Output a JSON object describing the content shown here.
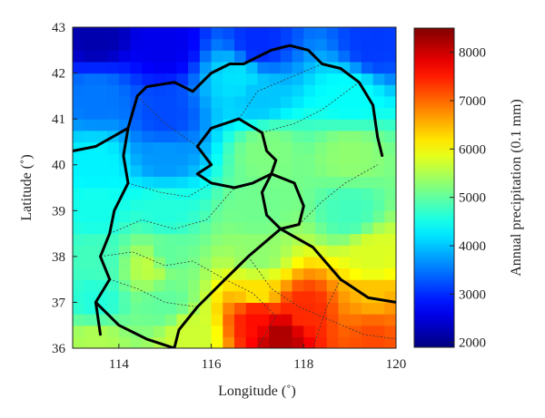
{
  "map": {
    "x_axis": {
      "label": "Longitude (˚)",
      "range": [
        113,
        120
      ],
      "ticks": [
        {
          "value": 114,
          "label": "114"
        },
        {
          "value": 116,
          "label": "116"
        },
        {
          "value": 118,
          "label": "118"
        },
        {
          "value": 120,
          "label": "120"
        }
      ]
    },
    "y_axis": {
      "label": "Latitude (˚)",
      "range": [
        36,
        43
      ],
      "ticks": [
        {
          "value": 36,
          "label": "36"
        },
        {
          "value": 37,
          "label": "37"
        },
        {
          "value": 38,
          "label": "38"
        },
        {
          "value": 39,
          "label": "39"
        },
        {
          "value": 40,
          "label": "40"
        },
        {
          "value": 41,
          "label": "41"
        },
        {
          "value": 42,
          "label": "42"
        },
        {
          "value": 43,
          "label": "43"
        }
      ]
    },
    "colorbar": {
      "label": "Annual precipitation (0.1 mm)",
      "range": [
        1900,
        8500
      ],
      "ticks": [
        {
          "value": 2000,
          "label": "2000"
        },
        {
          "value": 3000,
          "label": "3000"
        },
        {
          "value": 4000,
          "label": "4000"
        },
        {
          "value": 5000,
          "label": "5000"
        },
        {
          "value": 6000,
          "label": "6000"
        },
        {
          "value": 7000,
          "label": "7000"
        },
        {
          "value": 8000,
          "label": "8000"
        }
      ],
      "colormap": "jet"
    },
    "grid_resolution_deg": 0.25,
    "precipitation_anchors": [
      {
        "lon": 113.5,
        "lat": 42.8,
        "value": 2200
      },
      {
        "lon": 115.0,
        "lat": 42.6,
        "value": 2600
      },
      {
        "lon": 117.0,
        "lat": 42.6,
        "value": 3000
      },
      {
        "lon": 119.5,
        "lat": 42.6,
        "value": 3100
      },
      {
        "lon": 113.5,
        "lat": 41.5,
        "value": 3500
      },
      {
        "lon": 115.0,
        "lat": 41.0,
        "value": 3200
      },
      {
        "lon": 117.0,
        "lat": 41.5,
        "value": 4000
      },
      {
        "lon": 119.0,
        "lat": 41.5,
        "value": 4400
      },
      {
        "lon": 113.5,
        "lat": 40.0,
        "value": 4300
      },
      {
        "lon": 115.0,
        "lat": 40.2,
        "value": 3700
      },
      {
        "lon": 117.2,
        "lat": 40.3,
        "value": 5200
      },
      {
        "lon": 119.0,
        "lat": 40.2,
        "value": 5300
      },
      {
        "lon": 113.5,
        "lat": 39.0,
        "value": 4500
      },
      {
        "lon": 115.0,
        "lat": 39.0,
        "value": 4600
      },
      {
        "lon": 117.0,
        "lat": 39.0,
        "value": 5100
      },
      {
        "lon": 119.0,
        "lat": 39.0,
        "value": 4800
      },
      {
        "lon": 113.5,
        "lat": 38.0,
        "value": 4800
      },
      {
        "lon": 115.0,
        "lat": 38.0,
        "value": 5000
      },
      {
        "lon": 117.0,
        "lat": 38.0,
        "value": 5300
      },
      {
        "lon": 119.5,
        "lat": 38.0,
        "value": 5800
      },
      {
        "lon": 113.5,
        "lat": 37.0,
        "value": 4600
      },
      {
        "lon": 115.0,
        "lat": 37.0,
        "value": 5000
      },
      {
        "lon": 117.0,
        "lat": 37.2,
        "value": 6200
      },
      {
        "lon": 119.5,
        "lat": 37.0,
        "value": 6400
      },
      {
        "lon": 113.5,
        "lat": 36.2,
        "value": 5500
      },
      {
        "lon": 115.5,
        "lat": 36.3,
        "value": 5700
      },
      {
        "lon": 117.5,
        "lat": 36.3,
        "value": 8200
      },
      {
        "lon": 119.5,
        "lat": 36.3,
        "value": 7200
      },
      {
        "lon": 117.0,
        "lat": 36.7,
        "value": 7600
      },
      {
        "lon": 118.0,
        "lat": 36.8,
        "value": 7400
      },
      {
        "lon": 119.5,
        "lat": 36.7,
        "value": 7000
      },
      {
        "lon": 114.7,
        "lat": 37.8,
        "value": 5600
      },
      {
        "lon": 116.6,
        "lat": 41.9,
        "value": 4200
      }
    ],
    "boundaries": {
      "provincial": [
        [
          [
            113,
            40.3
          ],
          [
            113.5,
            40.4
          ],
          [
            114.2,
            40.8
          ],
          [
            114.4,
            41.5
          ],
          [
            114.6,
            41.7
          ],
          [
            115.2,
            41.8
          ],
          [
            115.6,
            41.6
          ],
          [
            116.0,
            42.0
          ],
          [
            116.4,
            42.2
          ],
          [
            116.7,
            42.2
          ],
          [
            117.3,
            42.5
          ],
          [
            117.7,
            42.6
          ],
          [
            118.1,
            42.5
          ],
          [
            118.4,
            42.2
          ],
          [
            118.8,
            42.1
          ],
          [
            119.2,
            41.8
          ],
          [
            119.5,
            41.3
          ],
          [
            119.6,
            40.6
          ],
          [
            119.7,
            40.2
          ]
        ],
        [
          [
            114.2,
            40.8
          ],
          [
            114.1,
            40.2
          ],
          [
            114.2,
            39.6
          ],
          [
            113.9,
            39.0
          ],
          [
            113.8,
            38.5
          ],
          [
            113.6,
            38.0
          ],
          [
            113.8,
            37.5
          ],
          [
            113.5,
            37.0
          ],
          [
            113.6,
            36.3
          ]
        ],
        [
          [
            116.0,
            40.0
          ],
          [
            115.7,
            40.4
          ],
          [
            116.0,
            40.8
          ],
          [
            116.6,
            41.0
          ],
          [
            117.1,
            40.7
          ],
          [
            117.2,
            40.3
          ],
          [
            117.4,
            40.1
          ],
          [
            117.3,
            39.8
          ],
          [
            116.9,
            39.6
          ],
          [
            116.5,
            39.5
          ],
          [
            116.0,
            39.6
          ],
          [
            115.7,
            39.8
          ],
          [
            116.0,
            40.0
          ]
        ],
        [
          [
            117.3,
            39.8
          ],
          [
            117.8,
            39.6
          ],
          [
            118.0,
            39.1
          ],
          [
            117.9,
            38.7
          ],
          [
            117.5,
            38.6
          ],
          [
            117.2,
            38.9
          ],
          [
            117.1,
            39.4
          ],
          [
            117.3,
            39.8
          ]
        ],
        [
          [
            113.5,
            37.0
          ],
          [
            114.0,
            36.5
          ],
          [
            114.6,
            36.2
          ],
          [
            115.2,
            36.0
          ]
        ],
        [
          [
            117.5,
            38.6
          ],
          [
            116.8,
            38.0
          ],
          [
            116.6,
            37.8
          ],
          [
            116.3,
            37.5
          ],
          [
            115.7,
            36.9
          ],
          [
            115.3,
            36.4
          ],
          [
            115.2,
            36.0
          ]
        ],
        [
          [
            117.5,
            38.6
          ],
          [
            118.2,
            38.2
          ],
          [
            118.8,
            37.5
          ],
          [
            119.4,
            37.1
          ],
          [
            120,
            37.0
          ]
        ]
      ],
      "prefectural": [
        [
          [
            114.2,
            39.6
          ],
          [
            114.9,
            39.4
          ],
          [
            115.5,
            39.3
          ],
          [
            116.0,
            39.6
          ]
        ],
        [
          [
            113.8,
            38.5
          ],
          [
            114.5,
            38.8
          ],
          [
            115.2,
            38.6
          ],
          [
            115.9,
            38.8
          ],
          [
            116.5,
            39.5
          ]
        ],
        [
          [
            113.6,
            38.0
          ],
          [
            114.3,
            38.1
          ],
          [
            115.0,
            37.8
          ],
          [
            115.6,
            37.9
          ],
          [
            116.3,
            37.5
          ]
        ],
        [
          [
            113.8,
            37.5
          ],
          [
            114.4,
            37.3
          ],
          [
            115.0,
            37.0
          ],
          [
            115.7,
            36.9
          ]
        ],
        [
          [
            114.4,
            41.5
          ],
          [
            115.0,
            40.9
          ],
          [
            115.7,
            40.4
          ]
        ],
        [
          [
            117.1,
            40.7
          ],
          [
            117.8,
            40.9
          ],
          [
            118.4,
            41.2
          ],
          [
            119.2,
            41.8
          ]
        ],
        [
          [
            117.9,
            38.7
          ],
          [
            118.4,
            39.2
          ],
          [
            118.9,
            39.6
          ],
          [
            119.6,
            40.0
          ]
        ],
        [
          [
            116.6,
            41.0
          ],
          [
            117.0,
            41.6
          ],
          [
            117.7,
            41.9
          ],
          [
            118.4,
            42.2
          ]
        ],
        [
          [
            116.8,
            38.0
          ],
          [
            117.3,
            37.3
          ],
          [
            117.9,
            36.9
          ],
          [
            118.6,
            36.6
          ],
          [
            119.3,
            36.3
          ],
          [
            120,
            36.2
          ]
        ],
        [
          [
            118.8,
            37.5
          ],
          [
            118.5,
            36.9
          ],
          [
            118.3,
            36.3
          ],
          [
            118.2,
            36.0
          ]
        ],
        [
          [
            116.3,
            37.5
          ],
          [
            116.9,
            37.2
          ],
          [
            117.4,
            36.7
          ],
          [
            117.0,
            36.0
          ]
        ]
      ]
    }
  }
}
